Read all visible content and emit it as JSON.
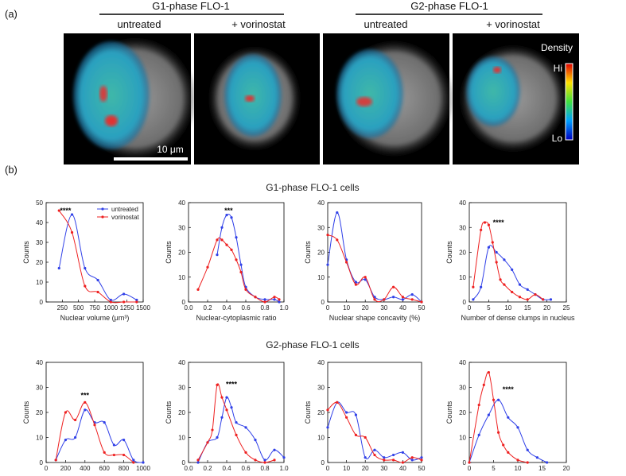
{
  "panel_a": {
    "label": "(a)",
    "groups": [
      {
        "title": "G1-phase FLO-1",
        "columns": [
          "untreated",
          "+ vorinostat"
        ]
      },
      {
        "title": "G2-phase FLO-1",
        "columns": [
          "untreated",
          "+ vorinostat"
        ]
      }
    ],
    "scale_bar": "10 μm",
    "colorbar": {
      "title": "Density",
      "high": "Hi",
      "low": "Lo"
    }
  },
  "panel_b": {
    "label": "(b)",
    "row_titles": [
      "G1-phase FLO-1 cells",
      "G2-phase FLO-1 cells"
    ]
  },
  "chart_data": [
    {
      "type": "line",
      "xlabel": "Nuclear volume (μm³)",
      "ylabel": "Counts",
      "annotation": "****",
      "legend": "upper right",
      "xlim": [
        0,
        1500
      ],
      "xticks": [
        250,
        500,
        750,
        1000,
        1250,
        1500
      ],
      "ylim": [
        0,
        50
      ],
      "yticks": [
        0,
        10,
        20,
        30,
        40,
        50
      ],
      "series": [
        {
          "name": "untreated",
          "color": "#3040e8",
          "x": [
            200,
            400,
            600,
            800,
            1000,
            1200,
            1400
          ],
          "values": [
            17,
            44,
            17,
            11,
            1,
            4,
            1
          ]
        },
        {
          "name": "vorinostat",
          "color": "#ee2020",
          "x": [
            200,
            400,
            600,
            800,
            1000,
            1200,
            1400
          ],
          "values": [
            46,
            35,
            8,
            5,
            0,
            0,
            0
          ]
        }
      ]
    },
    {
      "type": "line",
      "xlabel": "Nuclear-cytoplasmic ratio",
      "ylabel": "Counts",
      "annotation": "***",
      "xlim": [
        0,
        1
      ],
      "xticks": [
        {
          "value": 0,
          "label": "0.0"
        },
        0.2,
        0.4,
        0.6,
        0.8,
        {
          "value": 1,
          "label": "1.0"
        }
      ],
      "ylim": [
        0,
        40
      ],
      "yticks": [
        0,
        10,
        20,
        30,
        40
      ],
      "series": [
        {
          "color": "#3040e8",
          "x": [
            0.3,
            0.35,
            0.4,
            0.45,
            0.5,
            0.55,
            0.6,
            0.7,
            0.8,
            0.9,
            0.95
          ],
          "values": [
            19,
            30,
            35,
            34,
            26,
            15,
            6,
            2,
            1,
            1,
            0
          ]
        },
        {
          "color": "#ee2020",
          "x": [
            0.1,
            0.2,
            0.3,
            0.35,
            0.4,
            0.45,
            0.5,
            0.55,
            0.6,
            0.7,
            0.8,
            0.9,
            0.95
          ],
          "values": [
            5,
            14,
            25,
            25,
            23,
            21,
            17,
            12,
            5,
            2,
            0,
            2,
            1
          ]
        }
      ]
    },
    {
      "type": "line",
      "xlabel": "Nuclear shape concavity (%)",
      "ylabel": "Counts",
      "xlim": [
        0,
        50
      ],
      "xticks": [
        0,
        10,
        20,
        30,
        40,
        50
      ],
      "ylim": [
        0,
        40
      ],
      "yticks": [
        0,
        10,
        20,
        30,
        40
      ],
      "series": [
        {
          "color": "#3040e8",
          "x": [
            0,
            5,
            10,
            15,
            20,
            25,
            30,
            35,
            40,
            45,
            50
          ],
          "values": [
            15,
            36,
            17,
            8,
            9,
            2,
            1,
            2,
            1,
            3,
            0
          ]
        },
        {
          "color": "#ee2020",
          "x": [
            0,
            5,
            10,
            15,
            20,
            25,
            30,
            35,
            40,
            45,
            50
          ],
          "values": [
            27,
            25,
            16,
            7,
            10,
            1,
            1,
            6,
            2,
            1,
            0
          ]
        }
      ]
    },
    {
      "type": "line",
      "xlabel": "Number of dense clumps in nucleus",
      "ylabel": "Counts",
      "annotation": "****",
      "xlim": [
        0,
        25
      ],
      "xticks": [
        0,
        5,
        10,
        15,
        20,
        25
      ],
      "ylim": [
        0,
        40
      ],
      "yticks": [
        0,
        10,
        20,
        30,
        40
      ],
      "series": [
        {
          "color": "#3040e8",
          "x": [
            1,
            3,
            5,
            7,
            9,
            11,
            13,
            15,
            17,
            19,
            21
          ],
          "values": [
            1,
            6,
            22,
            20,
            17,
            13,
            7,
            5,
            3,
            1,
            1
          ]
        },
        {
          "color": "#ee2020",
          "x": [
            1,
            3,
            4,
            5,
            6,
            7,
            8,
            9,
            11,
            13,
            15,
            17,
            19
          ],
          "values": [
            6,
            29,
            32,
            31,
            24,
            16,
            9,
            7,
            4,
            2,
            1,
            3,
            1
          ]
        }
      ]
    },
    {
      "type": "line",
      "xlabel": "Nuclear volume (μm³)",
      "ylabel": "Counts",
      "annotation": "***",
      "xlim": [
        0,
        1000
      ],
      "xticks": [
        0,
        200,
        400,
        600,
        800,
        1000
      ],
      "ylim": [
        0,
        40
      ],
      "yticks": [
        0,
        10,
        20,
        30,
        40
      ],
      "series": [
        {
          "color": "#3040e8",
          "x": [
            100,
            200,
            300,
            400,
            500,
            600,
            700,
            800,
            900,
            1000
          ],
          "values": [
            1,
            9,
            10,
            21,
            16,
            16,
            7,
            9,
            1,
            0
          ]
        },
        {
          "color": "#ee2020",
          "x": [
            100,
            200,
            300,
            400,
            500,
            600,
            700,
            800,
            900
          ],
          "values": [
            1,
            20,
            17,
            24,
            15,
            4,
            3,
            3,
            0
          ]
        }
      ]
    },
    {
      "type": "line",
      "xlabel": "Nuclear-cytoplasmic ratio",
      "ylabel": "Counts",
      "annotation": "****",
      "xlim": [
        0,
        1
      ],
      "xticks": [
        {
          "value": 0,
          "label": "0.0"
        },
        0.2,
        0.4,
        0.6,
        0.8,
        {
          "value": 1,
          "label": "1.0"
        }
      ],
      "ylim": [
        0,
        40
      ],
      "yticks": [
        0,
        10,
        20,
        30,
        40
      ],
      "series": [
        {
          "color": "#3040e8",
          "x": [
            0.1,
            0.2,
            0.3,
            0.35,
            0.4,
            0.45,
            0.5,
            0.6,
            0.7,
            0.8,
            0.9,
            1.0
          ],
          "values": [
            0,
            8,
            10,
            18,
            26,
            22,
            16,
            14,
            9,
            1,
            5,
            2
          ]
        },
        {
          "color": "#ee2020",
          "x": [
            0.1,
            0.2,
            0.25,
            0.3,
            0.35,
            0.4,
            0.5,
            0.6,
            0.7,
            0.8,
            0.9
          ],
          "values": [
            1,
            8,
            13,
            31,
            26,
            21,
            11,
            4,
            1,
            0,
            1
          ]
        }
      ]
    },
    {
      "type": "line",
      "xlabel": "Nuclear shape concavity (%)",
      "ylabel": "Counts",
      "xlim": [
        0,
        50
      ],
      "xticks": [
        0,
        10,
        20,
        30,
        40,
        50
      ],
      "ylim": [
        0,
        40
      ],
      "yticks": [
        0,
        10,
        20,
        30,
        40
      ],
      "series": [
        {
          "color": "#3040e8",
          "x": [
            0,
            5,
            10,
            15,
            20,
            25,
            30,
            35,
            40,
            45,
            50
          ],
          "values": [
            14,
            24,
            20,
            19,
            2,
            5,
            2,
            3,
            4,
            1,
            2
          ]
        },
        {
          "color": "#ee2020",
          "x": [
            0,
            5,
            10,
            15,
            20,
            25,
            30,
            35,
            40,
            45,
            50
          ],
          "values": [
            21,
            24,
            18,
            11,
            10,
            3,
            1,
            1,
            0,
            2,
            1
          ]
        }
      ]
    },
    {
      "type": "line",
      "xlabel": "Number of dense clumps in nucleus",
      "ylabel": "Counts",
      "annotation": "****",
      "xlim": [
        0,
        20
      ],
      "xticks": [
        0,
        5,
        10,
        15,
        20
      ],
      "ylim": [
        0,
        40
      ],
      "yticks": [
        0,
        10,
        20,
        30,
        40
      ],
      "series": [
        {
          "color": "#3040e8",
          "x": [
            0,
            2,
            4,
            6,
            8,
            10,
            12,
            14,
            16
          ],
          "values": [
            0,
            11,
            19,
            25,
            18,
            14,
            5,
            2,
            0
          ]
        },
        {
          "color": "#ee2020",
          "x": [
            0,
            2,
            3,
            4,
            5,
            6,
            7,
            8,
            10,
            12
          ],
          "values": [
            0,
            23,
            31,
            36,
            25,
            12,
            7,
            4,
            1,
            0
          ]
        }
      ]
    }
  ]
}
